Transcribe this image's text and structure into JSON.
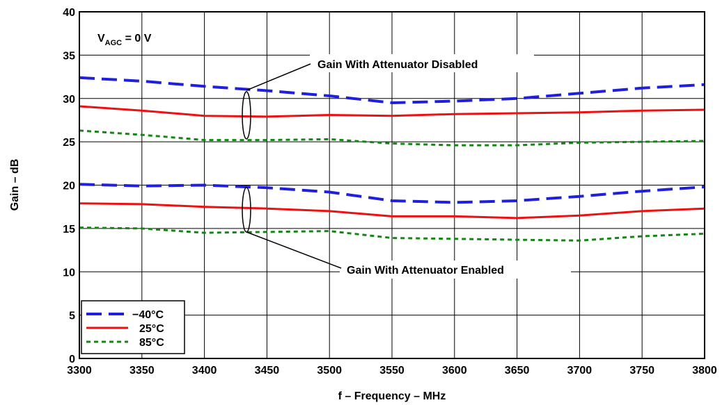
{
  "chart_data": {
    "type": "line",
    "xlabel": "f – Frequency – MHz",
    "ylabel": "Gain – dB",
    "xlim": [
      3300,
      3800
    ],
    "ylim": [
      0,
      40
    ],
    "x_ticks": [
      3300,
      3350,
      3400,
      3450,
      3500,
      3550,
      3600,
      3650,
      3700,
      3750,
      3800
    ],
    "y_ticks": [
      0,
      5,
      10,
      15,
      20,
      25,
      30,
      35,
      40
    ],
    "grid": true,
    "legend_position": "bottom-left",
    "condition_label": {
      "prefix": "V",
      "subscript": "AGC",
      "suffix": " = 0 V"
    },
    "annotations": {
      "disabled": "Gain With Attenuator Disabled",
      "enabled": "Gain With Attenuator Enabled"
    },
    "legend": [
      {
        "label": "−40°C",
        "color": "#1f1fe0",
        "style": "dashed"
      },
      {
        "label": "25°C",
        "color": "#ee1111",
        "style": "solid"
      },
      {
        "label": "85°C",
        "color": "#118811",
        "style": "dotted"
      }
    ],
    "x": [
      3300,
      3350,
      3400,
      3450,
      3500,
      3550,
      3600,
      3650,
      3700,
      3750,
      3800
    ],
    "series": [
      {
        "name": "−40°C",
        "group": "Gain With Attenuator Disabled",
        "color": "#1f1fe0",
        "style": "dashed",
        "values": [
          32.4,
          32.0,
          31.4,
          30.9,
          30.3,
          29.5,
          29.7,
          30.0,
          30.6,
          31.2,
          31.6
        ]
      },
      {
        "name": "25°C",
        "group": "Gain With Attenuator Disabled",
        "color": "#ee1111",
        "style": "solid",
        "values": [
          29.1,
          28.6,
          28.0,
          27.9,
          28.1,
          28.0,
          28.2,
          28.3,
          28.4,
          28.6,
          28.7
        ]
      },
      {
        "name": "85°C",
        "group": "Gain With Attenuator Disabled",
        "color": "#118811",
        "style": "dotted",
        "values": [
          26.3,
          25.8,
          25.2,
          25.2,
          25.3,
          24.8,
          24.6,
          24.6,
          24.9,
          25.0,
          25.1
        ]
      },
      {
        "name": "−40°C",
        "group": "Gain With Attenuator Enabled",
        "color": "#1f1fe0",
        "style": "dashed",
        "values": [
          20.1,
          19.9,
          20.0,
          19.7,
          19.2,
          18.2,
          18.0,
          18.2,
          18.7,
          19.3,
          19.8
        ]
      },
      {
        "name": "25°C",
        "group": "Gain With Attenuator Enabled",
        "color": "#ee1111",
        "style": "solid",
        "values": [
          17.9,
          17.8,
          17.5,
          17.3,
          17.0,
          16.4,
          16.4,
          16.2,
          16.5,
          17.0,
          17.3
        ]
      },
      {
        "name": "85°C",
        "group": "Gain With Attenuator Enabled",
        "color": "#118811",
        "style": "dotted",
        "values": [
          15.1,
          15.0,
          14.5,
          14.6,
          14.7,
          13.9,
          13.8,
          13.7,
          13.6,
          14.1,
          14.4
        ]
      }
    ]
  }
}
